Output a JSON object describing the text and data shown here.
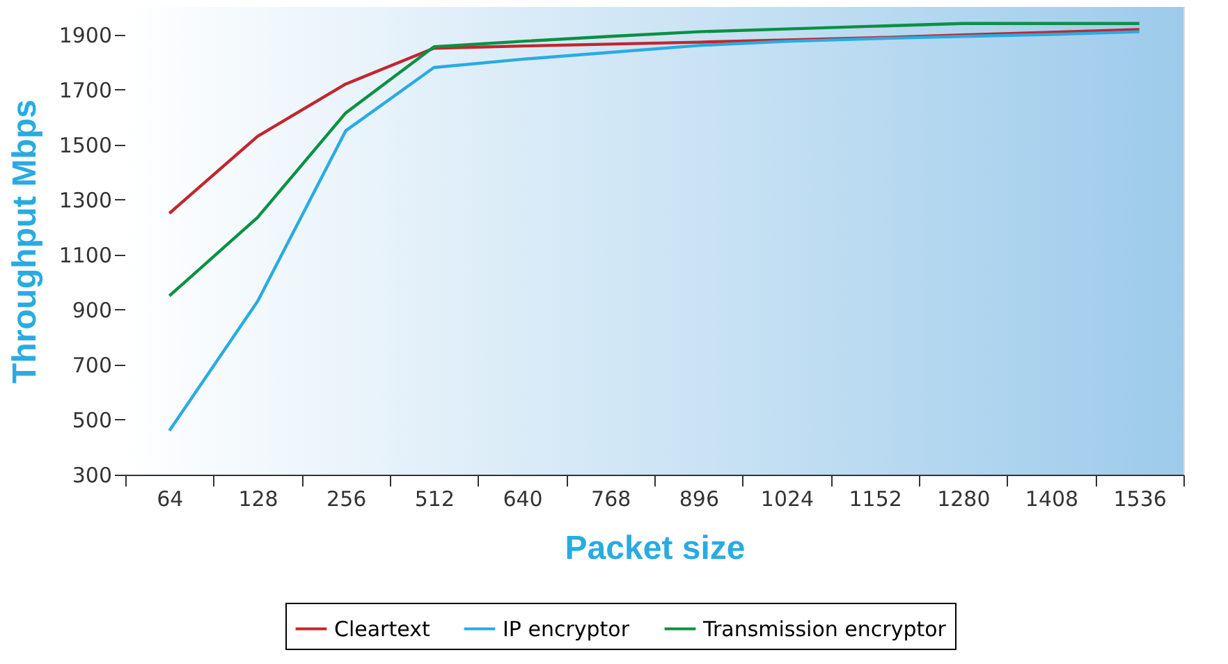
{
  "chart_data": {
    "type": "line",
    "xlabel": "Packet size",
    "ylabel": "Throughput Mbps",
    "categories": [
      "64",
      "128",
      "256",
      "512",
      "640",
      "768",
      "896",
      "1024",
      "1152",
      "1280",
      "1408",
      "1536"
    ],
    "series": [
      {
        "name": "Cleartext",
        "color": "#c1272d",
        "values": [
          1250,
          1530,
          1720,
          1850,
          1858,
          1865,
          1872,
          1880,
          1888,
          1898,
          1908,
          1918
        ]
      },
      {
        "name": "IP encryptor",
        "color": "#29abe2",
        "values": [
          460,
          930,
          1550,
          1780,
          1810,
          1835,
          1860,
          1875,
          1885,
          1893,
          1900,
          1910
        ]
      },
      {
        "name": "Transmission encryptor",
        "color": "#0a9142",
        "values": [
          950,
          1235,
          1615,
          1855,
          1875,
          1893,
          1910,
          1920,
          1930,
          1940,
          1940,
          1940
        ]
      }
    ],
    "ylim": [
      300,
      2000
    ],
    "yticks": [
      300,
      500,
      700,
      900,
      1100,
      1300,
      1500,
      1700,
      1900
    ],
    "legend": "bottom",
    "marker": "none",
    "line_style": "solid"
  }
}
